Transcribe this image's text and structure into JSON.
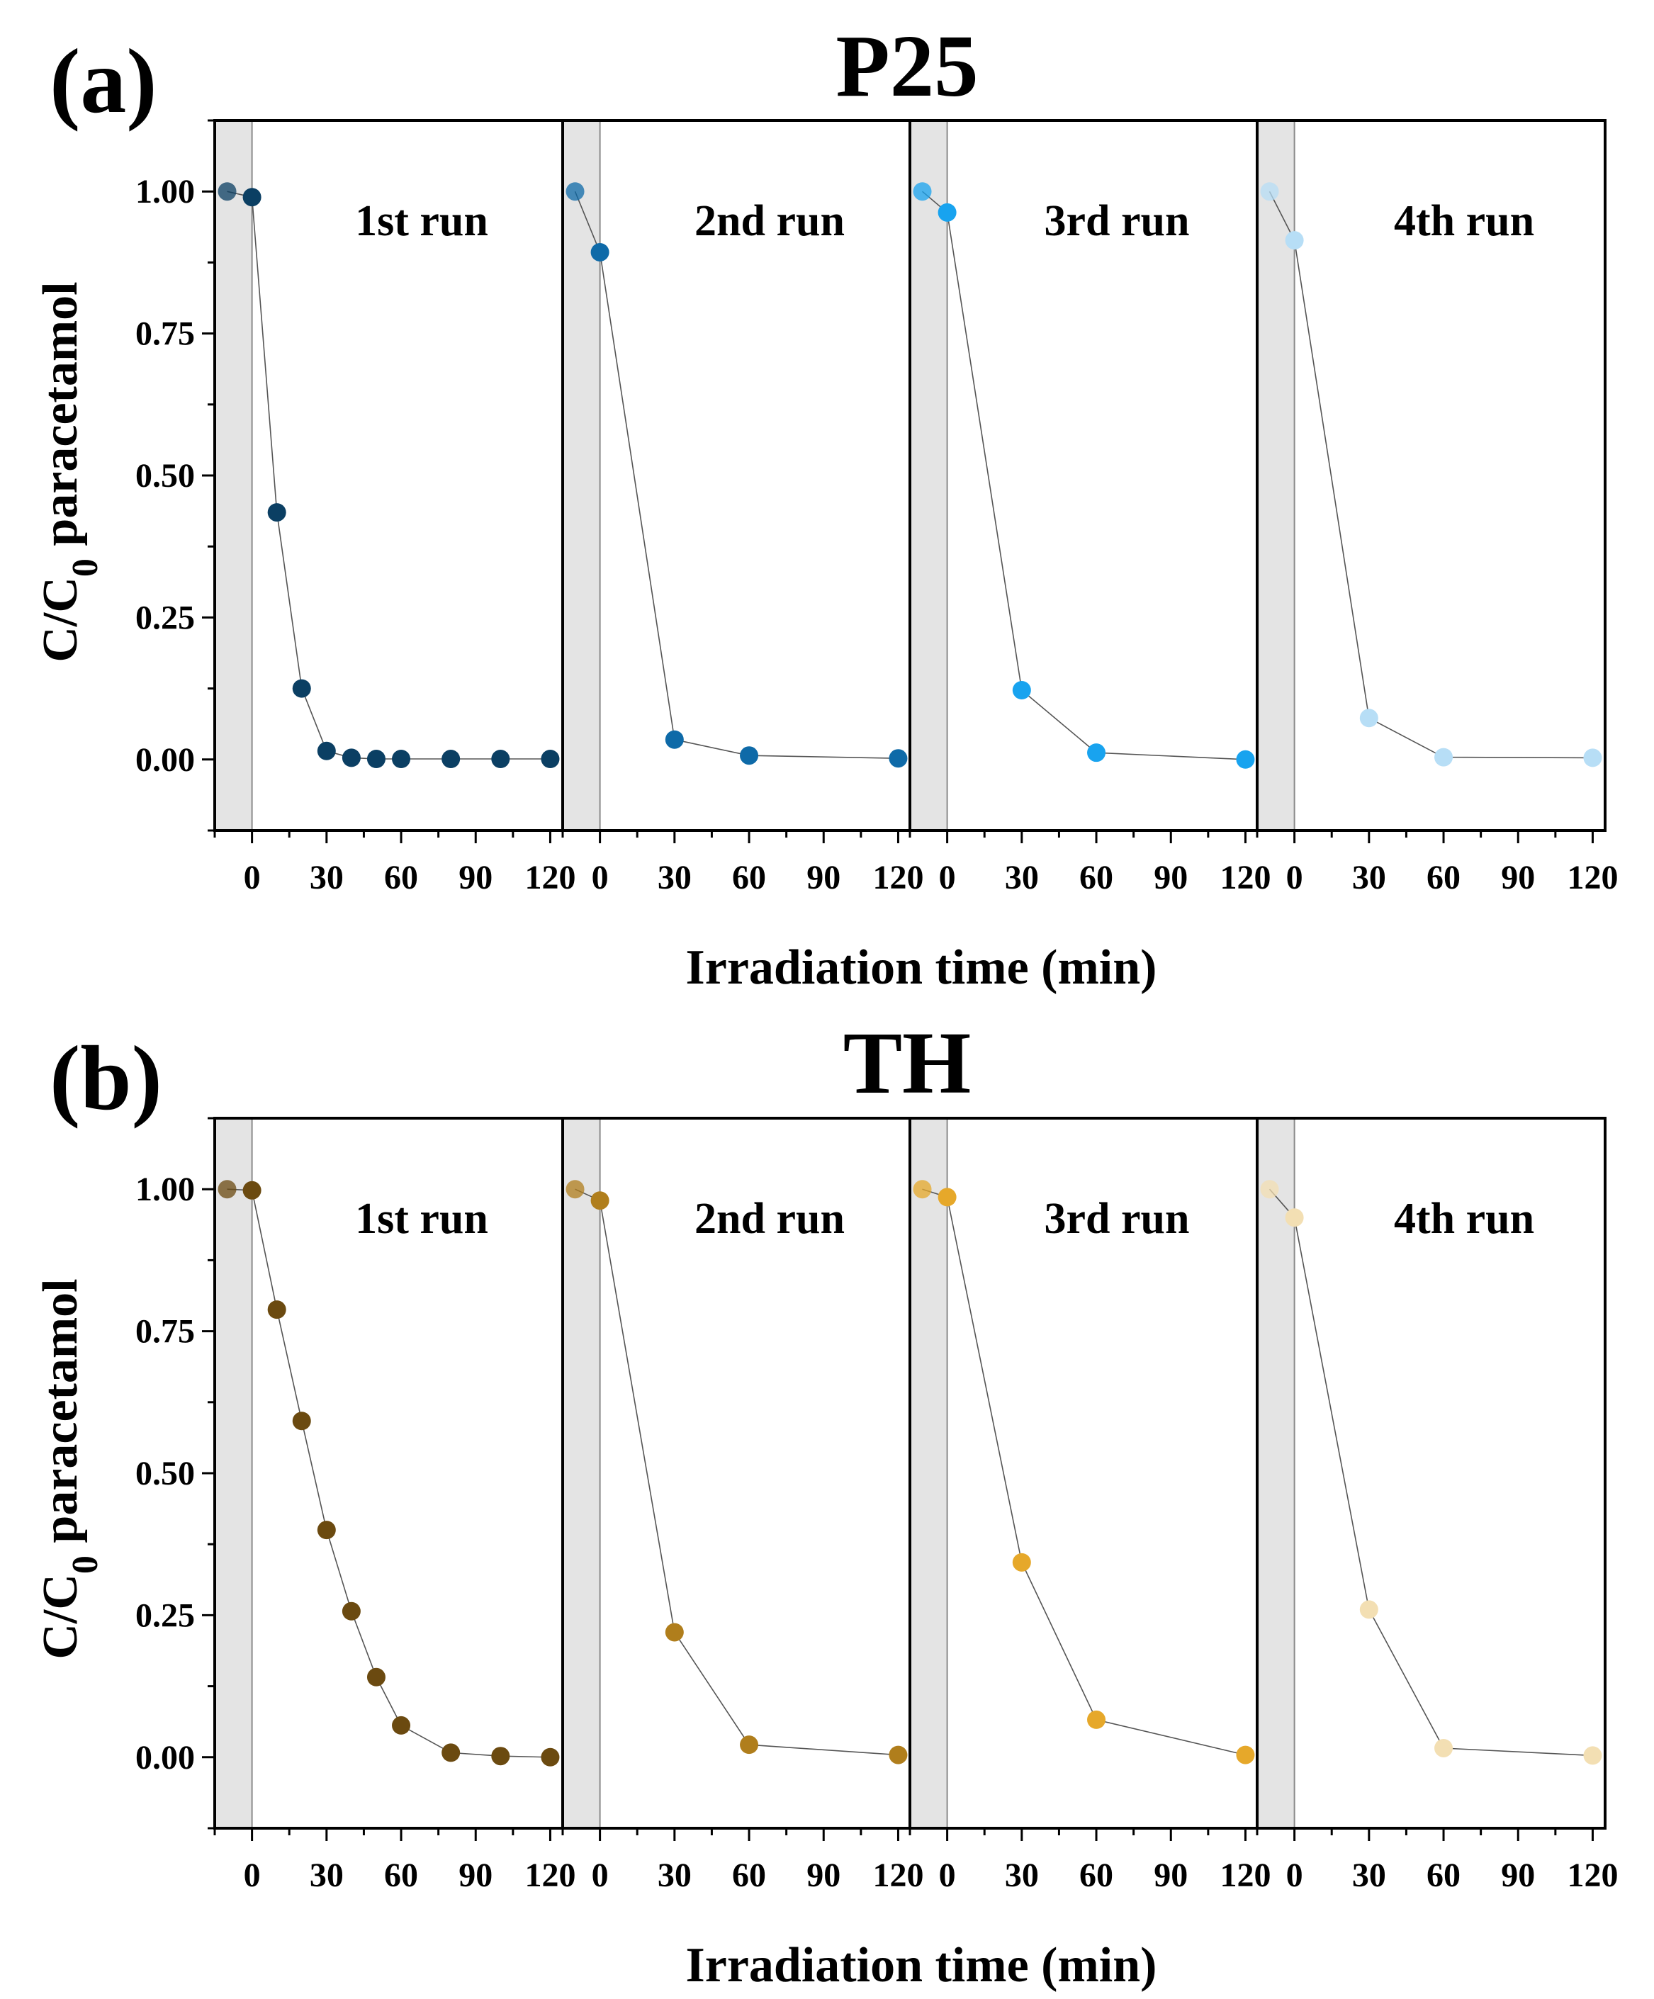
{
  "figure": {
    "x_axis_title": "Irradiation time (min)",
    "y_axis_title_main": "C/C",
    "y_axis_title_sub": "0",
    "y_axis_title_rest": " paracetamol"
  },
  "chart_data": [
    {
      "type": "scatter",
      "panel_label": "(a)",
      "title": "P25",
      "ylabel": "C/C0 paracetamol",
      "xlabel": "Irradiation time (min)",
      "ylim": [
        -0.125,
        1.125
      ],
      "xlim": [
        -15,
        125
      ],
      "y_ticks": [
        0.0,
        0.25,
        0.5,
        0.75,
        1.0
      ],
      "y_tick_labels": [
        "0.00",
        "0.25",
        "0.50",
        "0.75",
        "1.00"
      ],
      "x_ticks": [
        0,
        30,
        60,
        90,
        120
      ],
      "x_tick_labels": [
        "0",
        "30",
        "60",
        "90",
        "120"
      ],
      "dark_region": [
        -15,
        0
      ],
      "series": [
        {
          "name": "1st run",
          "color": "#0b3f63",
          "x": [
            -10,
            0,
            10,
            20,
            30,
            40,
            50,
            60,
            80,
            100,
            120
          ],
          "y": [
            1.0,
            0.99,
            0.435,
            0.125,
            0.015,
            0.003,
            0.001,
            0.001,
            0.001,
            0.001,
            0.001
          ]
        },
        {
          "name": "2nd run",
          "color": "#0e6aa8",
          "x": [
            -10,
            0,
            30,
            60,
            120
          ],
          "y": [
            1.0,
            0.893,
            0.035,
            0.007,
            0.002
          ]
        },
        {
          "name": "3rd run",
          "color": "#18a3ef",
          "x": [
            -10,
            0,
            30,
            60,
            120
          ],
          "y": [
            1.0,
            0.963,
            0.122,
            0.012,
            0.0
          ]
        },
        {
          "name": "4th run",
          "color": "#b7def6",
          "x": [
            -10,
            0,
            30,
            60,
            120
          ],
          "y": [
            1.0,
            0.914,
            0.073,
            0.004,
            0.003
          ]
        }
      ]
    },
    {
      "type": "scatter",
      "panel_label": "(b)",
      "title": "TH",
      "ylabel": "C/C0 paracetamol",
      "xlabel": "Irradiation time (min)",
      "ylim": [
        -0.125,
        1.125
      ],
      "xlim": [
        -15,
        125
      ],
      "y_ticks": [
        0.0,
        0.25,
        0.5,
        0.75,
        1.0
      ],
      "y_tick_labels": [
        "0.00",
        "0.25",
        "0.50",
        "0.75",
        "1.00"
      ],
      "x_ticks": [
        0,
        30,
        60,
        90,
        120
      ],
      "x_tick_labels": [
        "0",
        "30",
        "60",
        "90",
        "120"
      ],
      "dark_region": [
        -15,
        0
      ],
      "series": [
        {
          "name": "1st run",
          "color": "#6b4a10",
          "x": [
            -10,
            0,
            10,
            20,
            30,
            40,
            50,
            60,
            80,
            100,
            120
          ],
          "y": [
            1.0,
            0.998,
            0.788,
            0.592,
            0.4,
            0.257,
            0.141,
            0.056,
            0.008,
            0.002,
            0.0
          ]
        },
        {
          "name": "2nd run",
          "color": "#b07e1c",
          "x": [
            -10,
            0,
            30,
            60,
            120
          ],
          "y": [
            1.0,
            0.98,
            0.22,
            0.022,
            0.004
          ]
        },
        {
          "name": "3rd run",
          "color": "#e6a82a",
          "x": [
            -10,
            0,
            30,
            60,
            120
          ],
          "y": [
            1.0,
            0.986,
            0.343,
            0.066,
            0.004
          ]
        },
        {
          "name": "4th run",
          "color": "#f3dfb3",
          "x": [
            -10,
            0,
            30,
            60,
            120
          ],
          "y": [
            1.0,
            0.95,
            0.26,
            0.016,
            0.003
          ]
        }
      ]
    }
  ]
}
